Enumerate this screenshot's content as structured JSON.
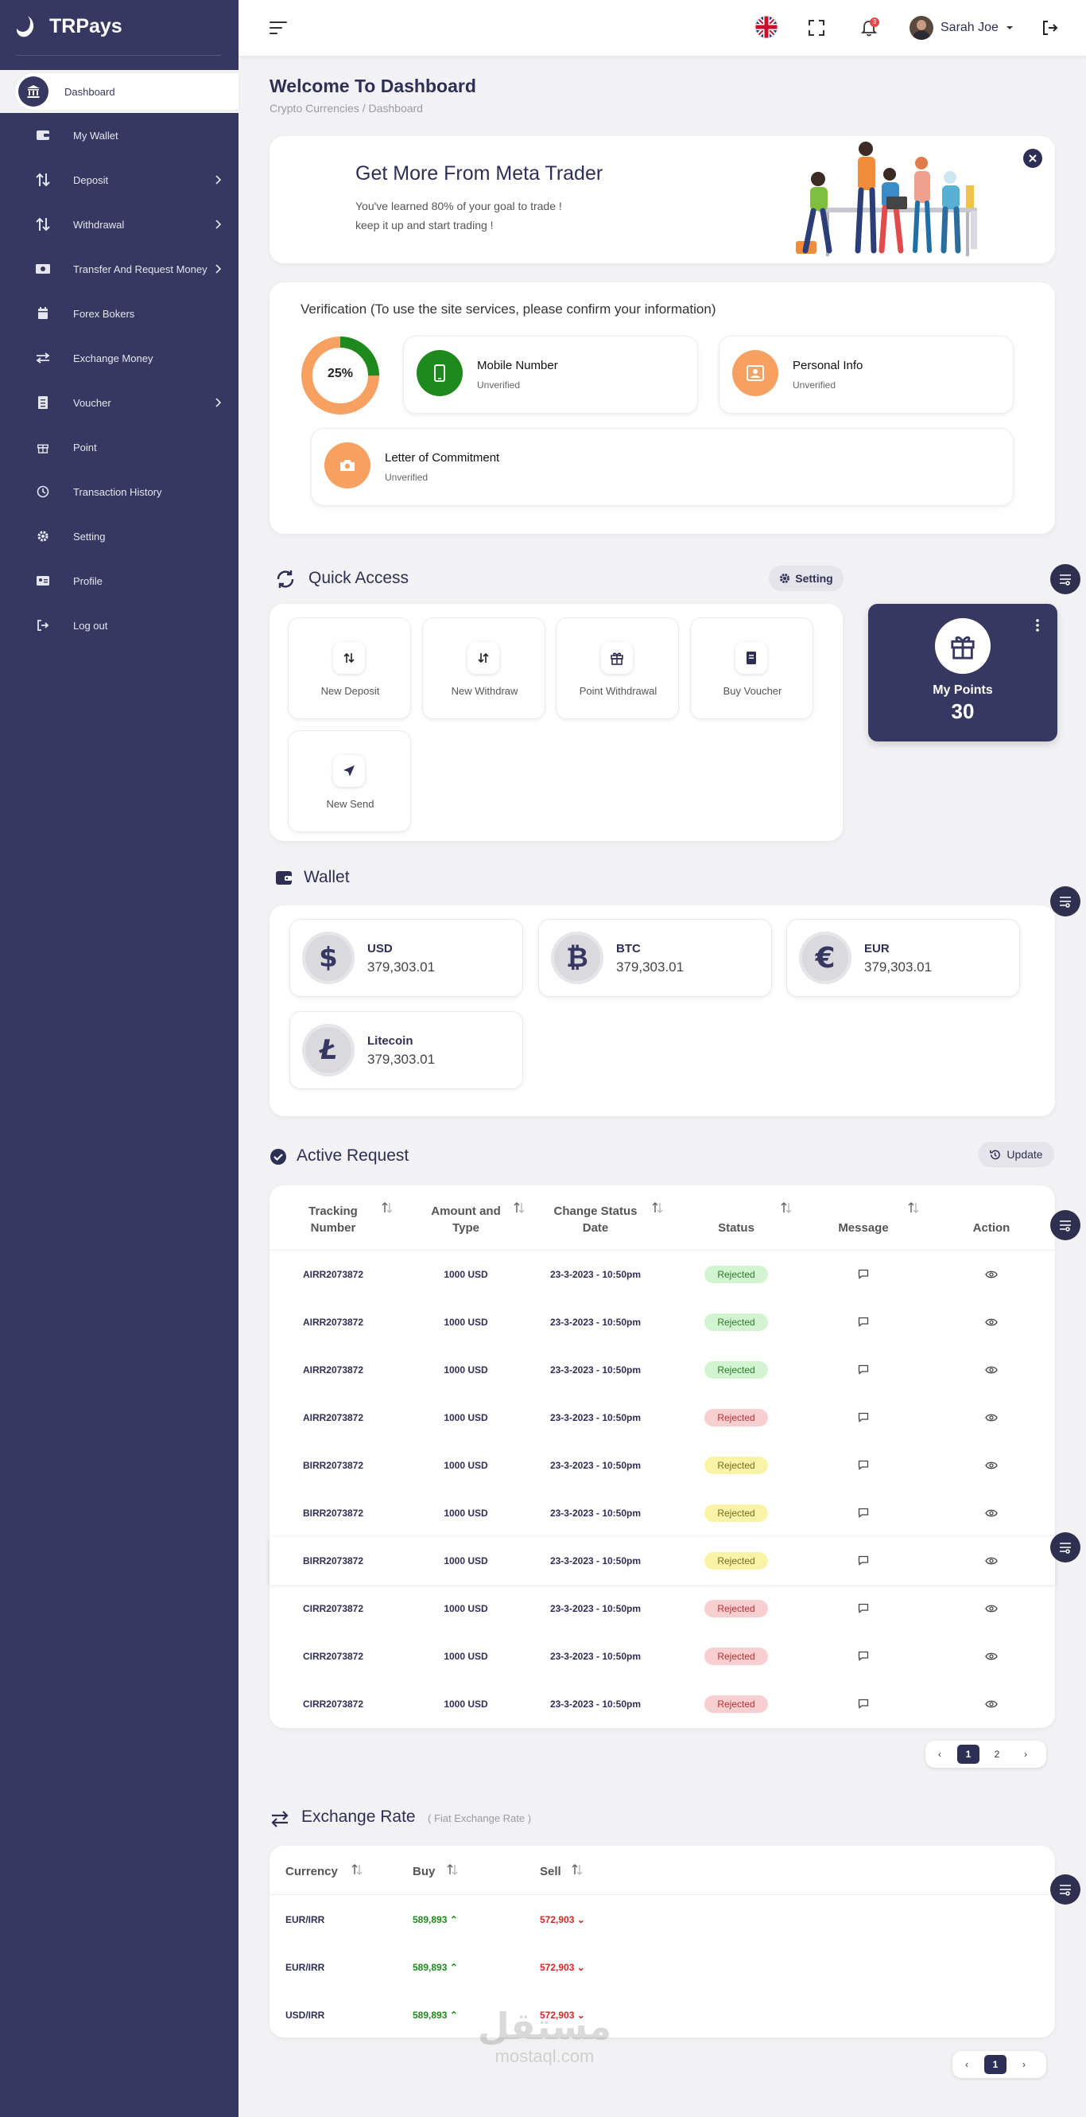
{
  "brand": {
    "name": "TRPays"
  },
  "sidebar": {
    "active": {
      "label": "Dashboard"
    },
    "items": [
      {
        "label": "My Wallet",
        "icon": "wallet-icon"
      },
      {
        "label": "Deposit",
        "icon": "deposit-arrows-icon",
        "has_submenu": true
      },
      {
        "label": "Withdrawal",
        "icon": "withdrawal-arrows-icon",
        "has_submenu": true
      },
      {
        "label": "Transfer And Request Money",
        "icon": "money-transfer-icon",
        "has_submenu": true
      },
      {
        "label": "Forex Bokers",
        "icon": "forex-icon"
      },
      {
        "label": "Exchange Money",
        "icon": "exchange-icon"
      },
      {
        "label": "Voucher",
        "icon": "voucher-icon",
        "has_submenu": true
      },
      {
        "label": "Point",
        "icon": "gift-icon"
      },
      {
        "label": "Transaction History",
        "icon": "clock-icon"
      },
      {
        "label": "Setting",
        "icon": "gear-icon"
      },
      {
        "label": "Profile",
        "icon": "profile-card-icon"
      },
      {
        "label": "Log out",
        "icon": "logout-icon"
      }
    ]
  },
  "topbar": {
    "user_name": "Sarah Joe",
    "notification_count": "3"
  },
  "header": {
    "title": "Welcome To Dashboard",
    "breadcrumb": "Crypto Currencies / Dashboard"
  },
  "promo": {
    "title": "Get More From Meta Trader",
    "line1": "You've learned 80% of your goal to trade !",
    "line2": "keep it up and start trading !"
  },
  "verification": {
    "title": "Verification (To use the site services, please confirm your information)",
    "progress_label": "25%",
    "progress": 0.25,
    "items": [
      {
        "name": "Mobile Number",
        "status": "Unverified",
        "color": "#1e8a1e"
      },
      {
        "name": "Personal Info",
        "status": "Unverified",
        "color": "#f6a162"
      },
      {
        "name": "Letter of Commitment",
        "status": "Unverified",
        "color": "#f6a162"
      }
    ]
  },
  "quick_access": {
    "title": "Quick Access",
    "setting_label": "Setting",
    "tiles": [
      {
        "label": "New Deposit"
      },
      {
        "label": "New Withdraw"
      },
      {
        "label": "Point Withdrawal"
      },
      {
        "label": "Buy Voucher"
      },
      {
        "label": "New Send"
      }
    ]
  },
  "points": {
    "label": "My Points",
    "value": "30"
  },
  "wallet": {
    "title": "Wallet",
    "cards": [
      {
        "name": "USD",
        "value": "379,303.01"
      },
      {
        "name": "BTC",
        "value": "379,303.01"
      },
      {
        "name": "EUR",
        "value": "379,303.01"
      },
      {
        "name": "Litecoin",
        "value": "379,303.01"
      }
    ]
  },
  "active_request": {
    "title": "Active Request",
    "update_label": "Update",
    "columns": {
      "tracking": "Tracking Number",
      "amount": "Amount and Type",
      "change": "Change Status Date",
      "status": "Status",
      "message": "Message",
      "action": "Action"
    },
    "rows": [
      {
        "tracking": "AIRR2073872",
        "amount": "1000 USD",
        "date": "23-3-2023 - 10:50pm",
        "status": "Rejected",
        "tone": "green"
      },
      {
        "tracking": "AIRR2073872",
        "amount": "1000 USD",
        "date": "23-3-2023 - 10:50pm",
        "status": "Rejected",
        "tone": "green"
      },
      {
        "tracking": "AIRR2073872",
        "amount": "1000 USD",
        "date": "23-3-2023 - 10:50pm",
        "status": "Rejected",
        "tone": "green"
      },
      {
        "tracking": "AIRR2073872",
        "amount": "1000 USD",
        "date": "23-3-2023 - 10:50pm",
        "status": "Rejected",
        "tone": "red"
      },
      {
        "tracking": "BIRR2073872",
        "amount": "1000 USD",
        "date": "23-3-2023 - 10:50pm",
        "status": "Rejected",
        "tone": "yellow"
      },
      {
        "tracking": "BIRR2073872",
        "amount": "1000 USD",
        "date": "23-3-2023 - 10:50pm",
        "status": "Rejected",
        "tone": "yellow"
      },
      {
        "tracking": "BIRR2073872",
        "amount": "1000 USD",
        "date": "23-3-2023 - 10:50pm",
        "status": "Rejected",
        "tone": "yellow"
      },
      {
        "tracking": "CIRR2073872",
        "amount": "1000 USD",
        "date": "23-3-2023 - 10:50pm",
        "status": "Rejected",
        "tone": "red"
      },
      {
        "tracking": "CIRR2073872",
        "amount": "1000 USD",
        "date": "23-3-2023 - 10:50pm",
        "status": "Rejected",
        "tone": "red"
      },
      {
        "tracking": "CIRR2073872",
        "amount": "1000 USD",
        "date": "23-3-2023 - 10:50pm",
        "status": "Rejected",
        "tone": "red"
      }
    ],
    "pagination": {
      "prev": "‹",
      "pages": [
        "1",
        "2"
      ],
      "next": "›",
      "current": "1"
    }
  },
  "exchange_rate": {
    "title": "Exchange Rate",
    "subtitle": "( Fiat Exchange Rate )",
    "columns": {
      "currency": "Currency",
      "buy": "Buy",
      "sell": "Sell"
    },
    "rows": [
      {
        "currency": "EUR/IRR",
        "buy": "589,893",
        "sell": "572,903"
      },
      {
        "currency": "EUR/IRR",
        "buy": "589,893",
        "sell": "572,903"
      },
      {
        "currency": "USD/IRR",
        "buy": "589,893",
        "sell": "572,903"
      }
    ],
    "pagination": {
      "prev": "‹",
      "pages": [
        "1"
      ],
      "next": "›",
      "current": "1"
    }
  },
  "watermark": {
    "arabic": "مستقل",
    "latin": "mostaql.com"
  },
  "colors": {
    "sidebar": "#373862",
    "accent": "#2e2f55",
    "orange": "#f6a162",
    "green": "#1e8a1e",
    "buy": "#1e8a1e",
    "sell": "#d62828"
  }
}
